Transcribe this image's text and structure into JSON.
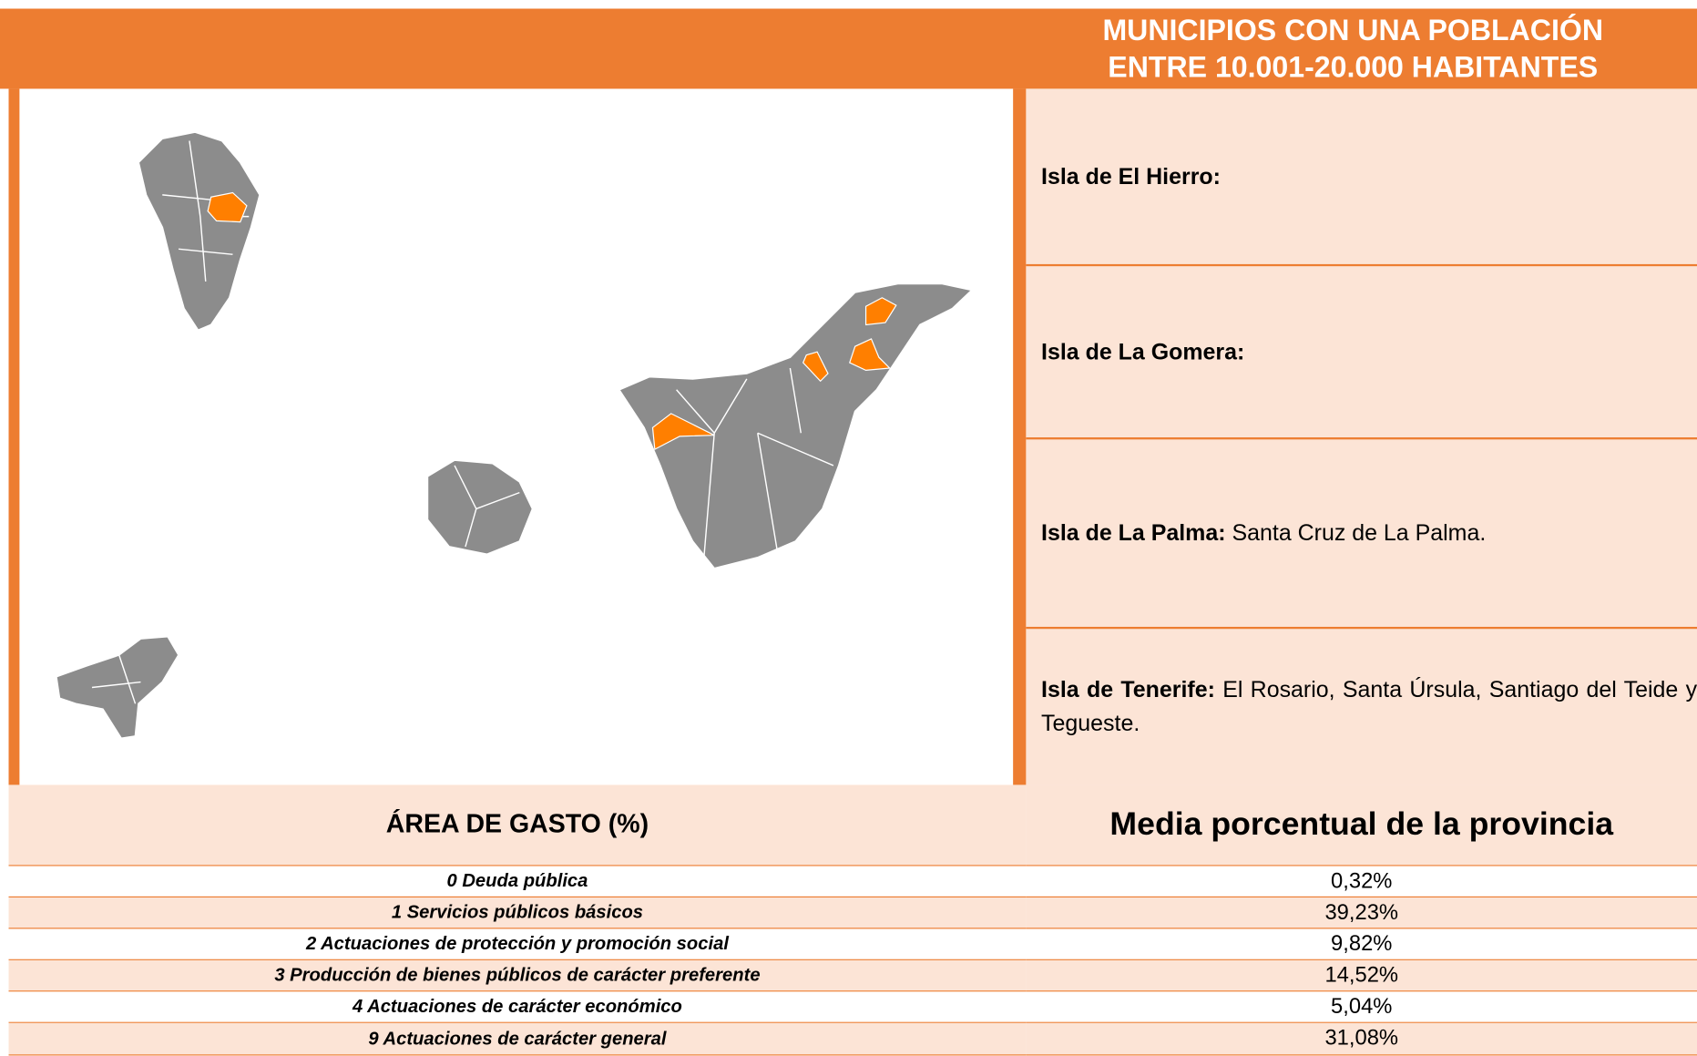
{
  "header": {
    "title_lines": [
      "MUNICIPIOS CON UNA POBLACIÓN",
      "ENTRE 10.001-20.000 HABITANTES"
    ]
  },
  "islands": [
    {
      "label": "Isla de El Hierro:",
      "text": ""
    },
    {
      "label": "Isla de La Gomera:",
      "text": ""
    },
    {
      "label": "Isla de La Palma:",
      "text": "Santa Cruz de La Palma."
    },
    {
      "label": "Isla de Tenerife:",
      "text": "El Rosario, Santa Úrsula, Santiago del Teide y Tegueste."
    }
  ],
  "table": {
    "headers": [
      "ÁREA DE GASTO (%)",
      "Media porcentual de la provincia"
    ],
    "rows": [
      [
        "0 Deuda pública",
        "0,32%"
      ],
      [
        "1 Servicios públicos básicos",
        "39,23%"
      ],
      [
        "2 Actuaciones de protección y promoción social",
        "9,82%"
      ],
      [
        "3 Producción de bienes públicos de carácter preferente",
        "14,52%"
      ],
      [
        "4 Actuaciones de carácter económico",
        "5,04%"
      ],
      [
        "9 Actuaciones de carácter general",
        "31,08%"
      ]
    ]
  }
}
